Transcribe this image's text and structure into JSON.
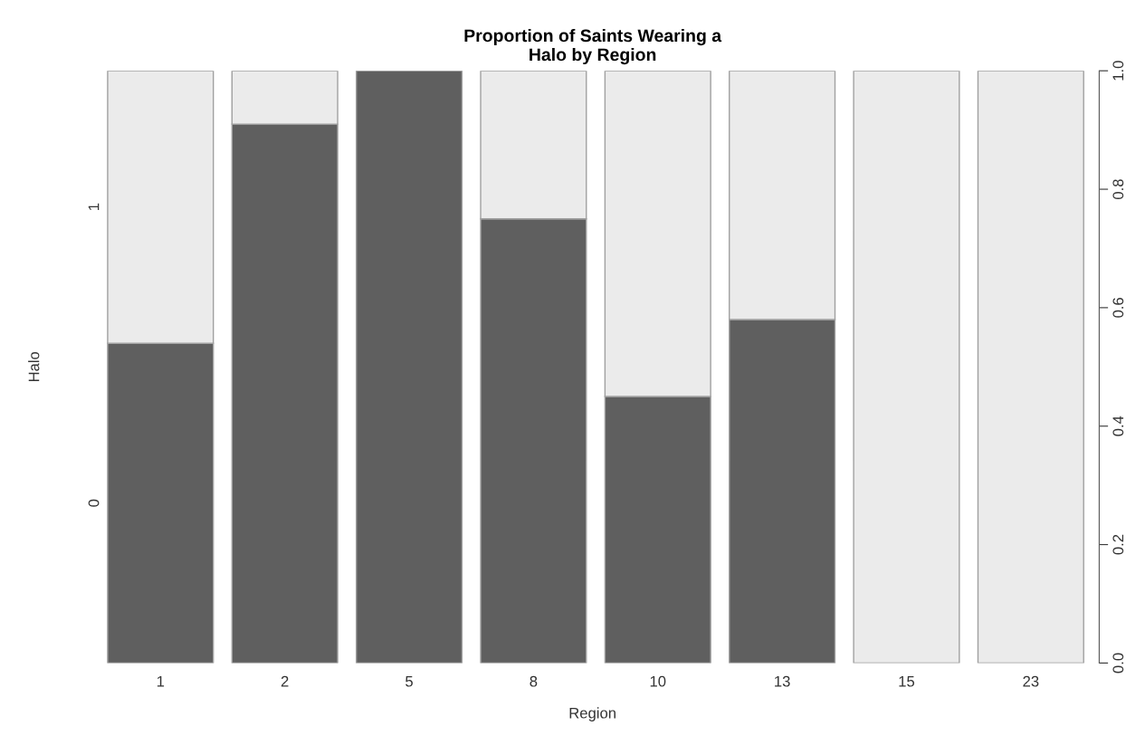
{
  "chart_data": {
    "type": "bar",
    "stacked": true,
    "title": "Proportion of Saints Wearing a\nHalo by Region",
    "xlabel": "Region",
    "ylabel": "Halo",
    "categories": [
      "1",
      "2",
      "5",
      "8",
      "10",
      "13",
      "15",
      "23"
    ],
    "series": [
      {
        "name": "0",
        "color": "#5f5f5f",
        "values": [
          0.54,
          0.91,
          1,
          0.75,
          0.45,
          0.58,
          0,
          0
        ]
      },
      {
        "name": "1",
        "color": "#ebebeb",
        "values": [
          0.46,
          0.09,
          0,
          0.25,
          0.55,
          0.42,
          1,
          1
        ]
      }
    ],
    "ylim": [
      0,
      1
    ],
    "yticks": [
      {
        "value": 0,
        "label": "0.0"
      },
      {
        "value": 0.2,
        "label": "0.2"
      },
      {
        "value": 0.4,
        "label": "0.4"
      },
      {
        "value": 0.6,
        "label": "0.6"
      },
      {
        "value": 0.8,
        "label": "0.8"
      },
      {
        "value": 1,
        "label": "1.0"
      }
    ],
    "grid": false,
    "legend": false
  }
}
